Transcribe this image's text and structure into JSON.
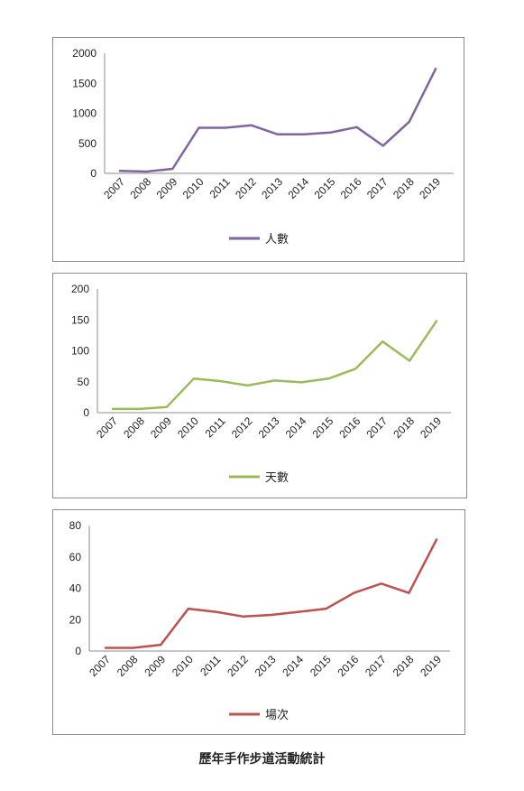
{
  "caption": "歷年手作步道活動統計",
  "chart_data": [
    {
      "type": "line",
      "categories": [
        "2007",
        "2008",
        "2009",
        "2010",
        "2011",
        "2012",
        "2013",
        "2014",
        "2015",
        "2016",
        "2017",
        "2018",
        "2019"
      ],
      "series": [
        {
          "name": "人數",
          "values": [
            40,
            30,
            75,
            760,
            760,
            800,
            650,
            650,
            680,
            770,
            460,
            860,
            1740
          ],
          "color": "#8064a2"
        }
      ],
      "yticks": [
        0,
        500,
        1000,
        1500,
        2000
      ],
      "ylim": [
        0,
        2000
      ],
      "legend": "bottom"
    },
    {
      "type": "line",
      "categories": [
        "2007",
        "2008",
        "2009",
        "2010",
        "2011",
        "2012",
        "2013",
        "2014",
        "2015",
        "2016",
        "2017",
        "2018",
        "2019"
      ],
      "series": [
        {
          "name": "天數",
          "values": [
            6,
            6,
            9,
            55,
            51,
            44,
            52,
            49,
            55,
            71,
            115,
            84,
            148
          ],
          "color": "#9bbb59"
        }
      ],
      "yticks": [
        0,
        50,
        100,
        150,
        200
      ],
      "ylim": [
        0,
        200
      ],
      "legend": "bottom"
    },
    {
      "type": "line",
      "categories": [
        "2007",
        "2008",
        "2009",
        "2010",
        "2011",
        "2012",
        "2013",
        "2014",
        "2015",
        "2016",
        "2017",
        "2018",
        "2019"
      ],
      "series": [
        {
          "name": "場次",
          "values": [
            2,
            2,
            4,
            27,
            25,
            22,
            23,
            25,
            27,
            37,
            43,
            37,
            71
          ],
          "color": "#c0504d"
        }
      ],
      "yticks": [
        0,
        20,
        40,
        60,
        80
      ],
      "ylim": [
        0,
        80
      ],
      "legend": "bottom"
    }
  ]
}
